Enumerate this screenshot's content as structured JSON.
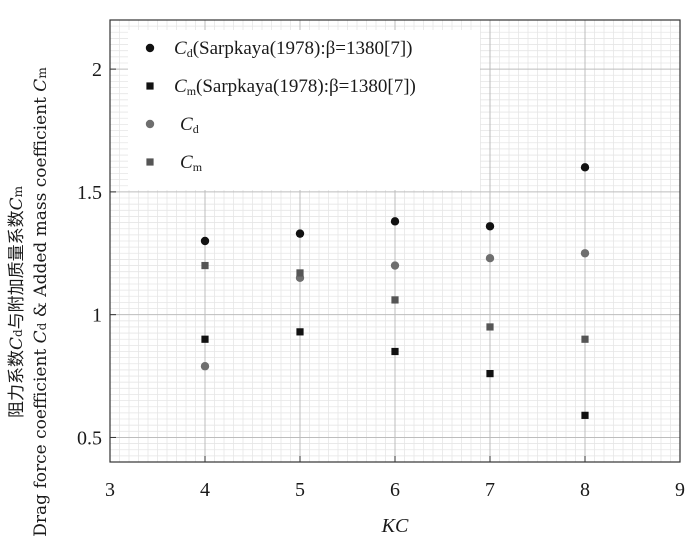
{
  "chart_data": {
    "type": "scatter",
    "xlabel": "KC",
    "ylabel": {
      "line1_prefix": "阻力系数",
      "line1_mid": "与附加质量系数",
      "line2_prefix": "Drag force coefficient",
      "line2_mid": "& Added mass coefficient",
      "cd_symbol": "C",
      "cd_sub": "d",
      "cm_symbol": "C",
      "cm_sub": "m"
    },
    "xlim": [
      3,
      9
    ],
    "ylim": [
      0.4,
      2.2
    ],
    "xticks": [
      "3",
      "4",
      "5",
      "6",
      "7",
      "8",
      "9"
    ],
    "yticks": [
      {
        "value": 0.5,
        "label": "0.5"
      },
      {
        "value": 1,
        "label": "1"
      },
      {
        "value": 1.5,
        "label": "1.5"
      },
      {
        "value": 2,
        "label": "2"
      }
    ],
    "grid": true,
    "legend_position": "top-left",
    "series": [
      {
        "symbol": "C",
        "sub": "d",
        "suffix": "(Sarpkaya(1978):β=1380[7])",
        "marker": "circle",
        "color": "#111111",
        "points": [
          [
            4,
            1.3
          ],
          [
            5,
            1.33
          ],
          [
            6,
            1.38
          ],
          [
            7,
            1.36
          ],
          [
            8,
            1.6
          ]
        ]
      },
      {
        "symbol": "C",
        "sub": "m",
        "suffix": "(Sarpkaya(1978):β=1380[7])",
        "marker": "square",
        "color": "#111111",
        "points": [
          [
            4,
            0.9
          ],
          [
            5,
            0.93
          ],
          [
            6,
            0.85
          ],
          [
            7,
            0.76
          ],
          [
            8,
            0.59
          ]
        ]
      },
      {
        "symbol": "C",
        "sub": "d",
        "suffix": "",
        "marker": "circle",
        "color": "#6e6e6e",
        "points": [
          [
            4,
            0.79
          ],
          [
            5,
            1.15
          ],
          [
            6,
            1.2
          ],
          [
            7,
            1.23
          ],
          [
            8,
            1.25
          ]
        ]
      },
      {
        "symbol": "C",
        "sub": "m",
        "suffix": "",
        "marker": "square",
        "color": "#555555",
        "points": [
          [
            4,
            1.2
          ],
          [
            5,
            1.17
          ],
          [
            6,
            1.06
          ],
          [
            7,
            0.95
          ],
          [
            8,
            0.9
          ]
        ]
      }
    ]
  }
}
